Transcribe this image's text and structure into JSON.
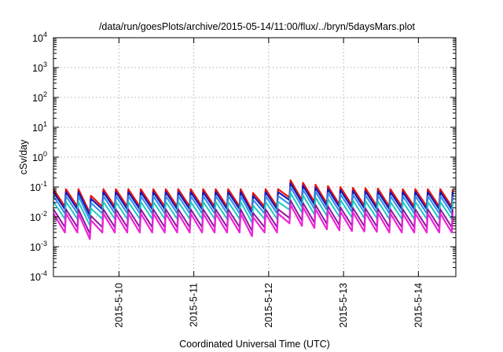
{
  "chart_data": {
    "type": "line",
    "title": "/data/run/goesPlots/archive/2015-05-14/11:00/flux/../bryn/5daysMars.plot",
    "xlabel": "Coordinated Universal Time (UTC)",
    "ylabel": "cSv/day",
    "yscale": "log",
    "ylim": [
      0.0001,
      10000
    ],
    "xlim": [
      "2015-05-09 03:00",
      "2015-05-14 12:00"
    ],
    "grid": true,
    "x_ticks": [
      "2015-5-10",
      "2015-5-11",
      "2015-5-12",
      "2015-5-13",
      "2015-5-14"
    ],
    "y_ticks": [
      {
        "base": "10",
        "exp": "4"
      },
      {
        "base": "10",
        "exp": "3"
      },
      {
        "base": "10",
        "exp": "2"
      },
      {
        "base": "10",
        "exp": "1"
      },
      {
        "base": "10",
        "exp": "0"
      },
      {
        "base": "10",
        "exp": "-1"
      },
      {
        "base": "10",
        "exp": "-2"
      },
      {
        "base": "10",
        "exp": "-3"
      },
      {
        "base": "10",
        "exp": "-4"
      }
    ],
    "sawtooth_period_hours": 4,
    "series": [
      {
        "color": "#e8150c",
        "peak": 0.085,
        "trough": 0.022,
        "width": 2.2
      },
      {
        "color": "#1a1ab4",
        "peak": 0.068,
        "trough": 0.018,
        "width": 2.2
      },
      {
        "color": "#2a8cf0",
        "peak": 0.05,
        "trough": 0.013,
        "width": 2.0
      },
      {
        "color": "#1ec8c0",
        "peak": 0.032,
        "trough": 0.0085,
        "width": 2.0
      },
      {
        "color": "#8a1a9a",
        "peak": 0.018,
        "trough": 0.0045,
        "width": 2.0
      },
      {
        "color": "#ee22d8",
        "peak": 0.013,
        "trough": 0.003,
        "width": 2.2
      }
    ]
  }
}
